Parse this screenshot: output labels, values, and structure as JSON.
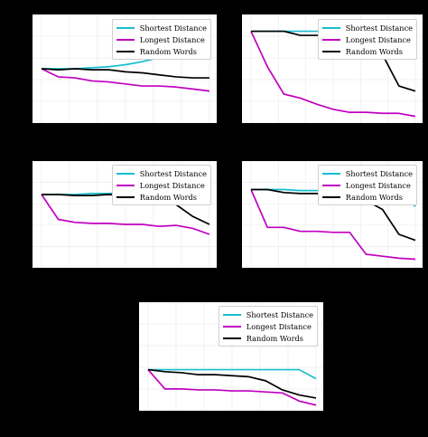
{
  "chart_data": [
    {
      "type": "line",
      "x": [
        0,
        1,
        2,
        3,
        4,
        5,
        6,
        7,
        8,
        9,
        10
      ],
      "ylim": [
        0,
        1
      ],
      "grid": true,
      "legend_position": "top-right",
      "series": [
        {
          "name": "Shortest Distance",
          "color": "#17becf",
          "values": [
            0.5,
            0.5,
            0.5,
            0.51,
            0.52,
            0.54,
            0.57,
            0.61,
            0.67,
            0.73,
            0.68
          ]
        },
        {
          "name": "Longest Distance",
          "color": "#c000c0",
          "values": [
            0.5,
            0.42,
            0.41,
            0.38,
            0.37,
            0.35,
            0.33,
            0.33,
            0.32,
            0.3,
            0.28
          ]
        },
        {
          "name": "Random Words",
          "color": "#000000",
          "values": [
            0.5,
            0.49,
            0.5,
            0.49,
            0.49,
            0.47,
            0.46,
            0.44,
            0.42,
            0.41,
            0.41
          ]
        }
      ]
    },
    {
      "type": "line",
      "x": [
        0,
        1,
        2,
        3,
        4,
        5,
        6,
        7,
        8,
        9,
        10
      ],
      "ylim": [
        0,
        1
      ],
      "grid": true,
      "legend_position": "top-right",
      "series": [
        {
          "name": "Shortest Distance",
          "color": "#17becf",
          "values": [
            0.87,
            0.87,
            0.87,
            0.87,
            0.87,
            0.87,
            0.87,
            0.87,
            0.87,
            0.87,
            0.8
          ]
        },
        {
          "name": "Longest Distance",
          "color": "#c000c0",
          "values": [
            0.87,
            0.52,
            0.25,
            0.21,
            0.15,
            0.1,
            0.07,
            0.07,
            0.06,
            0.06,
            0.03
          ]
        },
        {
          "name": "Random Words",
          "color": "#000000",
          "values": [
            0.87,
            0.87,
            0.87,
            0.83,
            0.83,
            0.82,
            0.8,
            0.7,
            0.64,
            0.33,
            0.28
          ]
        }
      ]
    },
    {
      "type": "line",
      "x": [
        0,
        1,
        2,
        3,
        4,
        5,
        6,
        7,
        8,
        9,
        10
      ],
      "ylim": [
        0,
        1
      ],
      "grid": true,
      "legend_position": "top-right",
      "series": [
        {
          "name": "Shortest Distance",
          "color": "#17becf",
          "values": [
            0.7,
            0.7,
            0.7,
            0.71,
            0.71,
            0.72,
            0.73,
            0.74,
            0.75,
            0.77,
            0.72
          ]
        },
        {
          "name": "Longest Distance",
          "color": "#c000c0",
          "values": [
            0.7,
            0.45,
            0.42,
            0.41,
            0.41,
            0.4,
            0.4,
            0.38,
            0.39,
            0.36,
            0.3
          ]
        },
        {
          "name": "Random Words",
          "color": "#000000",
          "values": [
            0.7,
            0.7,
            0.69,
            0.69,
            0.7,
            0.69,
            0.68,
            0.66,
            0.6,
            0.48,
            0.4
          ]
        }
      ]
    },
    {
      "type": "line",
      "x": [
        0,
        1,
        2,
        3,
        4,
        5,
        6,
        7,
        8,
        9,
        10
      ],
      "ylim": [
        0,
        1
      ],
      "grid": true,
      "legend_position": "top-right",
      "series": [
        {
          "name": "Shortest Distance",
          "color": "#17becf",
          "values": [
            0.75,
            0.75,
            0.75,
            0.74,
            0.74,
            0.74,
            0.74,
            0.74,
            0.74,
            0.72,
            0.58
          ]
        },
        {
          "name": "Longest Distance",
          "color": "#c000c0",
          "values": [
            0.75,
            0.37,
            0.37,
            0.33,
            0.33,
            0.32,
            0.32,
            0.1,
            0.08,
            0.06,
            0.05
          ]
        },
        {
          "name": "Random Words",
          "color": "#000000",
          "values": [
            0.75,
            0.75,
            0.72,
            0.71,
            0.71,
            0.71,
            0.69,
            0.64,
            0.55,
            0.3,
            0.24
          ]
        }
      ]
    },
    {
      "type": "line",
      "x": [
        0,
        1,
        2,
        3,
        4,
        5,
        6,
        7,
        8,
        9,
        10
      ],
      "ylim": [
        0,
        1
      ],
      "grid": true,
      "legend_position": "top-right",
      "series": [
        {
          "name": "Shortest Distance",
          "color": "#17becf",
          "values": [
            0.37,
            0.37,
            0.37,
            0.37,
            0.37,
            0.37,
            0.37,
            0.37,
            0.37,
            0.37,
            0.28
          ]
        },
        {
          "name": "Longest Distance",
          "color": "#c000c0",
          "values": [
            0.37,
            0.18,
            0.18,
            0.17,
            0.17,
            0.16,
            0.16,
            0.15,
            0.14,
            0.06,
            0.02
          ]
        },
        {
          "name": "Random Words",
          "color": "#000000",
          "values": [
            0.37,
            0.35,
            0.34,
            0.32,
            0.32,
            0.31,
            0.3,
            0.26,
            0.17,
            0.12,
            0.09
          ]
        }
      ]
    }
  ]
}
